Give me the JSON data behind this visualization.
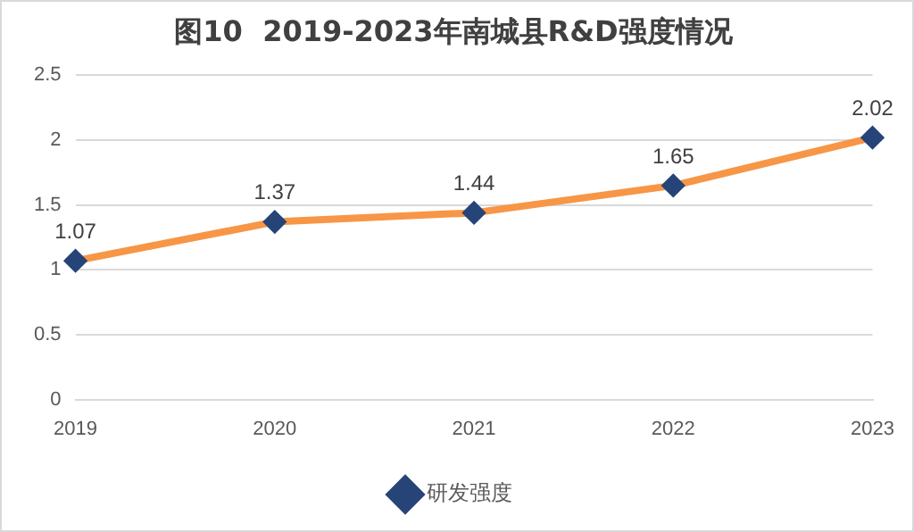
{
  "chart_data": {
    "type": "line",
    "title": "图10  2019-2023年南城县R&D强度情况",
    "categories": [
      "2019",
      "2020",
      "2021",
      "2022",
      "2023"
    ],
    "series": [
      {
        "name": "研发强度",
        "color": "#f79646",
        "values": [
          1.07,
          1.37,
          1.44,
          1.65,
          2.02
        ]
      }
    ],
    "ylim": [
      0,
      2.5
    ],
    "yticks": [
      0,
      0.5,
      1,
      1.5,
      2,
      2.5
    ],
    "grid": "y",
    "legend": "bottom",
    "marker": "diamond",
    "data_labels": true
  }
}
